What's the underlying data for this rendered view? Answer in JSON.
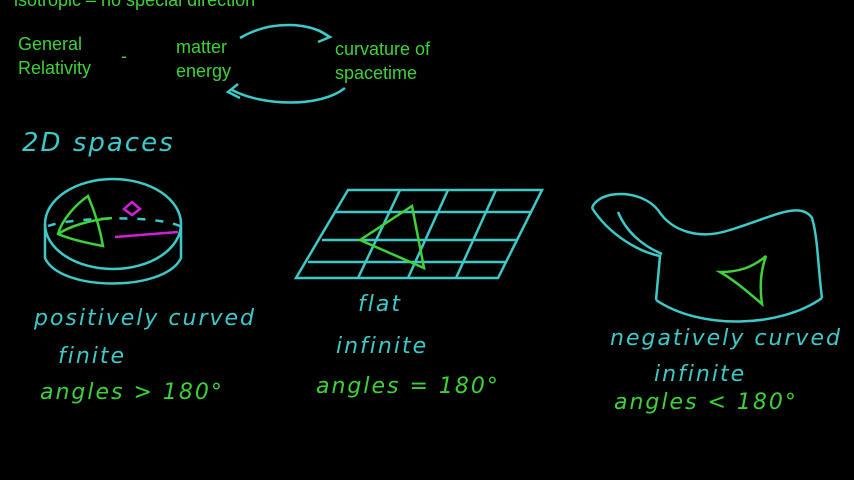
{
  "header": {
    "top_partial": "isotropic – no special direction",
    "gr_label_line1": "General",
    "gr_label_line2": "Relativity",
    "gr_dash": "-",
    "matter_line1": "matter",
    "matter_line2": "energy",
    "curvature_line1": "curvature of",
    "curvature_line2": "spacetime"
  },
  "section_title": "2D spaces",
  "spaces": [
    {
      "name": "sphere",
      "line1": "positively curved",
      "line2": "finite",
      "line3": "angles > 180°"
    },
    {
      "name": "plane",
      "line1": "flat",
      "line2": "infinite",
      "line3": "angles = 180°"
    },
    {
      "name": "saddle",
      "line1": "negatively curved",
      "line2": "infinite",
      "line3": "angles < 180°"
    }
  ],
  "colors": {
    "cyan": "#3ec9c9",
    "green": "#3fd13a",
    "magenta": "#d21fd6",
    "background": "#000000"
  }
}
